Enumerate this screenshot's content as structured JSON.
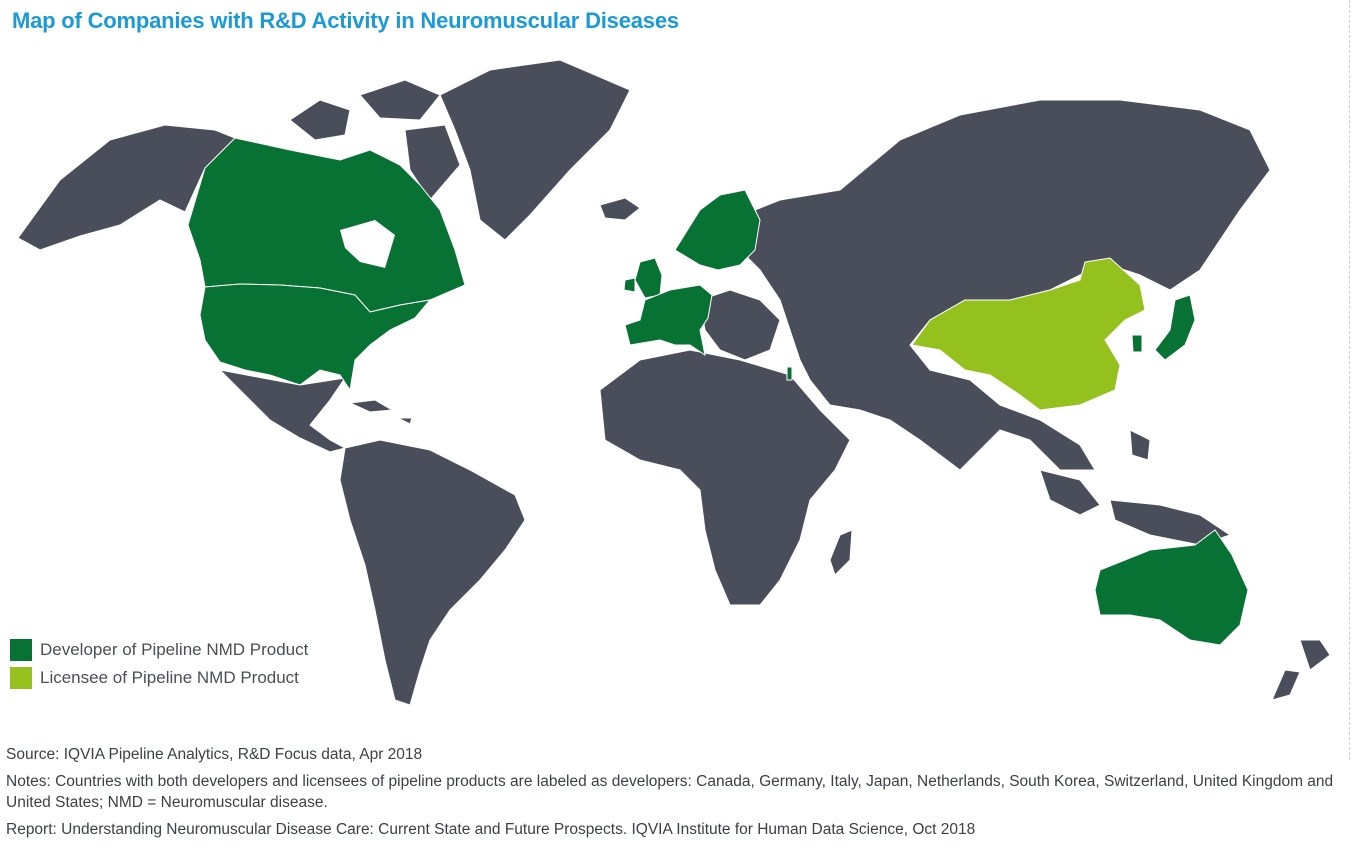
{
  "title": "Map of Companies with R&D Activity in Neuromuscular Diseases",
  "legend": {
    "developer": {
      "label": "Developer of Pipeline NMD Product",
      "color": "#087234"
    },
    "licensee": {
      "label": "Licensee of Pipeline NMD Product",
      "color": "#95c11f"
    }
  },
  "map_colors": {
    "other_countries": "#4a4e5a",
    "borders": "#ffffff"
  },
  "highlighted": {
    "developer_regions": [
      "Canada",
      "United States",
      "United Kingdom",
      "Ireland",
      "France",
      "Spain",
      "Portugal",
      "Netherlands",
      "Belgium",
      "Germany",
      "Switzerland",
      "Italy",
      "Norway",
      "Sweden",
      "Finland",
      "Israel",
      "Japan",
      "South Korea",
      "Australia"
    ],
    "licensee_regions": [
      "China"
    ]
  },
  "footer": {
    "source": "Source: IQVIA Pipeline Analytics, R&D Focus data, Apr 2018",
    "notes": "Notes: Countries with both developers and licensees of pipeline products are labeled as developers: Canada, Germany, Italy, Japan, Netherlands, South Korea, Switzerland, United Kingdom and United States; NMD = Neuromuscular disease.",
    "report": "Report: Understanding Neuromuscular Disease Care: Current State and Future Prospects. IQVIA Institute for Human Data Science, Oct 2018"
  }
}
